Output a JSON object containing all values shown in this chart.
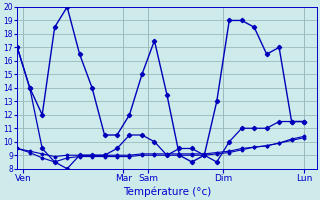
{
  "xlabel": "Température (°c)",
  "bg_color": "#ceeaea",
  "line_color": "#0000bb",
  "grid_color": "#99bbbb",
  "axis_label_color": "#0000aa",
  "tick_label_color": "#0000cc",
  "ylim": [
    8,
    20
  ],
  "yticks": [
    8,
    9,
    10,
    11,
    12,
    13,
    14,
    15,
    16,
    17,
    18,
    19,
    20
  ],
  "xlim": [
    0,
    24
  ],
  "xtick_positions": [
    0.5,
    8.5,
    10.5,
    16.5,
    23.0
  ],
  "xtick_labels": [
    "Ven",
    "Mar",
    "Sam",
    "Dim",
    "Lun"
  ],
  "series_main": [
    17,
    14,
    12,
    18.5,
    20,
    16.5,
    14,
    10.5,
    10.5,
    12,
    15,
    17.5,
    13.5,
    9,
    8.5,
    9,
    13,
    19,
    19,
    18.5,
    16.5,
    17,
    11.5,
    11.5
  ],
  "series_min": [
    17,
    14,
    9.5,
    8.5,
    8,
    9,
    9,
    9,
    9.5,
    10.5,
    10.5,
    10,
    9,
    9.5,
    9.5,
    9,
    8.5,
    10,
    11,
    11,
    11,
    11.5,
    11.5,
    11.5
  ],
  "series_flat1": [
    9.5,
    9.3,
    9.1,
    8.9,
    9.0,
    9.0,
    9.0,
    9.0,
    9.0,
    9.0,
    9.1,
    9.1,
    9.1,
    9.1,
    9.1,
    9.1,
    9.2,
    9.3,
    9.5,
    9.6,
    9.7,
    9.9,
    10.1,
    10.3
  ],
  "series_flat2": [
    9.5,
    9.2,
    8.8,
    8.5,
    8.8,
    8.9,
    8.9,
    8.9,
    8.9,
    8.9,
    9.0,
    9.0,
    9.0,
    9.0,
    9.0,
    9.0,
    9.1,
    9.2,
    9.4,
    9.6,
    9.7,
    9.9,
    10.2,
    10.4
  ],
  "num_points": 24
}
